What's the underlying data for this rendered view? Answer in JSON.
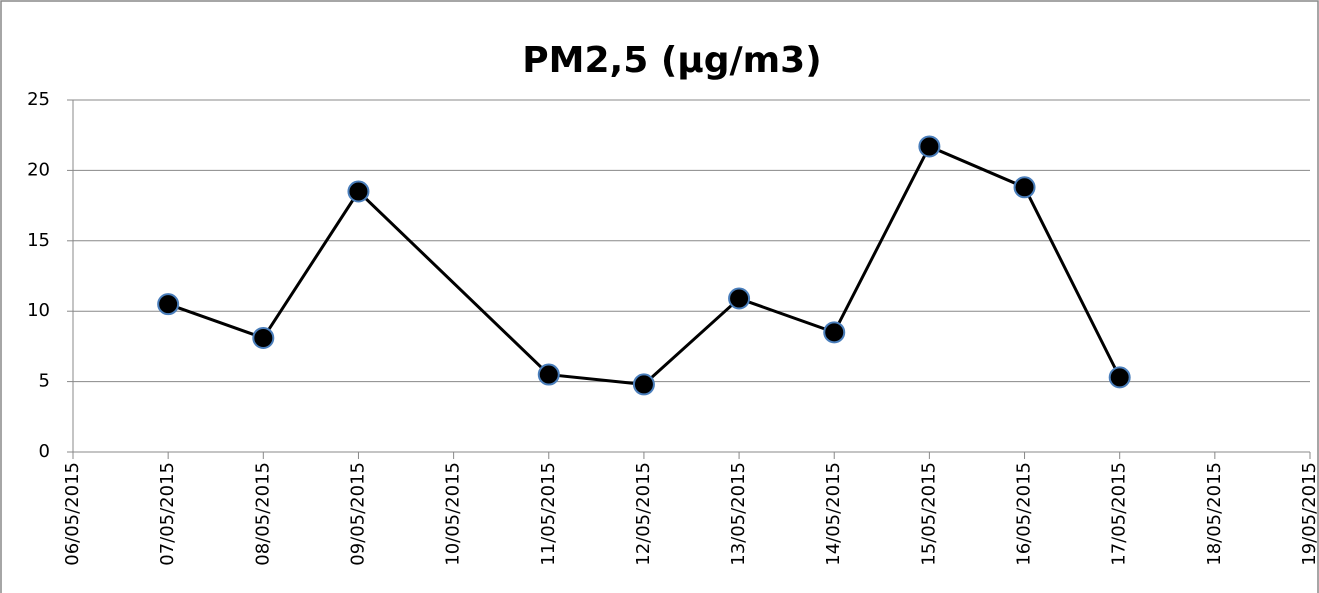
{
  "chart_data": {
    "type": "line",
    "title": "PM2,5 (µg/m3)",
    "x": [
      "07/05/2015",
      "08/05/2015",
      "09/05/2015",
      "11/05/2015",
      "12/05/2015",
      "13/05/2015",
      "14/05/2015",
      "15/05/2015",
      "16/05/2015",
      "17/05/2015"
    ],
    "series": [
      {
        "color": "#000000",
        "marker_edge": "#4a7ebb",
        "values": [
          10.5,
          8.1,
          18.5,
          5.5,
          4.8,
          10.9,
          8.5,
          21.7,
          18.8,
          5.3
        ]
      }
    ],
    "xlim": [
      "06/05/2015",
      "19/05/2015"
    ],
    "xticks": [
      "06/05/2015",
      "07/05/2015",
      "08/05/2015",
      "09/05/2015",
      "10/05/2015",
      "11/05/2015",
      "12/05/2015",
      "13/05/2015",
      "14/05/2015",
      "15/05/2015",
      "16/05/2015",
      "17/05/2015",
      "18/05/2015",
      "19/05/2015"
    ],
    "ylim": [
      0,
      25
    ],
    "yticks": [
      0,
      5,
      10,
      15,
      20,
      25
    ],
    "grid": true
  }
}
